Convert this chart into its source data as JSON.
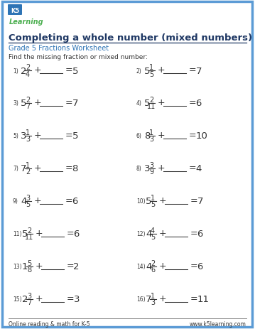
{
  "title": "Completing a whole number (mixed numbers)",
  "subtitle": "Grade 5 Fractions Worksheet",
  "instruction": "Find the missing fraction or mixed number:",
  "footer_left": "Online reading & math for K-5",
  "footer_right": "www.k5learning.com",
  "border_color": "#5b9bd5",
  "title_color": "#1f3864",
  "subtitle_color": "#2e74b5",
  "text_color": "#333333",
  "problems": [
    {
      "num": "1",
      "whole": "2",
      "numer": "2",
      "denom": "4",
      "result": "5"
    },
    {
      "num": "2",
      "whole": "5",
      "numer": "1",
      "denom": "5",
      "result": "7"
    },
    {
      "num": "3",
      "whole": "5",
      "numer": "2",
      "denom": "7",
      "result": "7"
    },
    {
      "num": "4",
      "whole": "5",
      "numer": "2",
      "denom": "11",
      "result": "6"
    },
    {
      "num": "5",
      "whole": "3",
      "numer": "1",
      "denom": "3",
      "result": "5"
    },
    {
      "num": "6",
      "whole": "8",
      "numer": "1",
      "denom": "3",
      "result": "10"
    },
    {
      "num": "7",
      "whole": "7",
      "numer": "1",
      "denom": "2",
      "result": "8"
    },
    {
      "num": "8",
      "whole": "3",
      "numer": "3",
      "denom": "9",
      "result": "4"
    },
    {
      "num": "9",
      "whole": "4",
      "numer": "3",
      "denom": "5",
      "result": "6"
    },
    {
      "num": "10",
      "whole": "5",
      "numer": "1",
      "denom": "5",
      "result": "7"
    },
    {
      "num": "11",
      "whole": "5",
      "numer": "2",
      "denom": "11",
      "result": "6"
    },
    {
      "num": "12",
      "whole": "4",
      "numer": "4",
      "denom": "5",
      "result": "6"
    },
    {
      "num": "13",
      "whole": "1",
      "numer": "5",
      "denom": "8",
      "result": "2"
    },
    {
      "num": "14",
      "whole": "4",
      "numer": "2",
      "denom": "6",
      "result": "6"
    },
    {
      "num": "15",
      "whole": "2",
      "numer": "3",
      "denom": "7",
      "result": "3"
    },
    {
      "num": "16",
      "whole": "7",
      "numer": "1",
      "denom": "3",
      "result": "11"
    }
  ]
}
